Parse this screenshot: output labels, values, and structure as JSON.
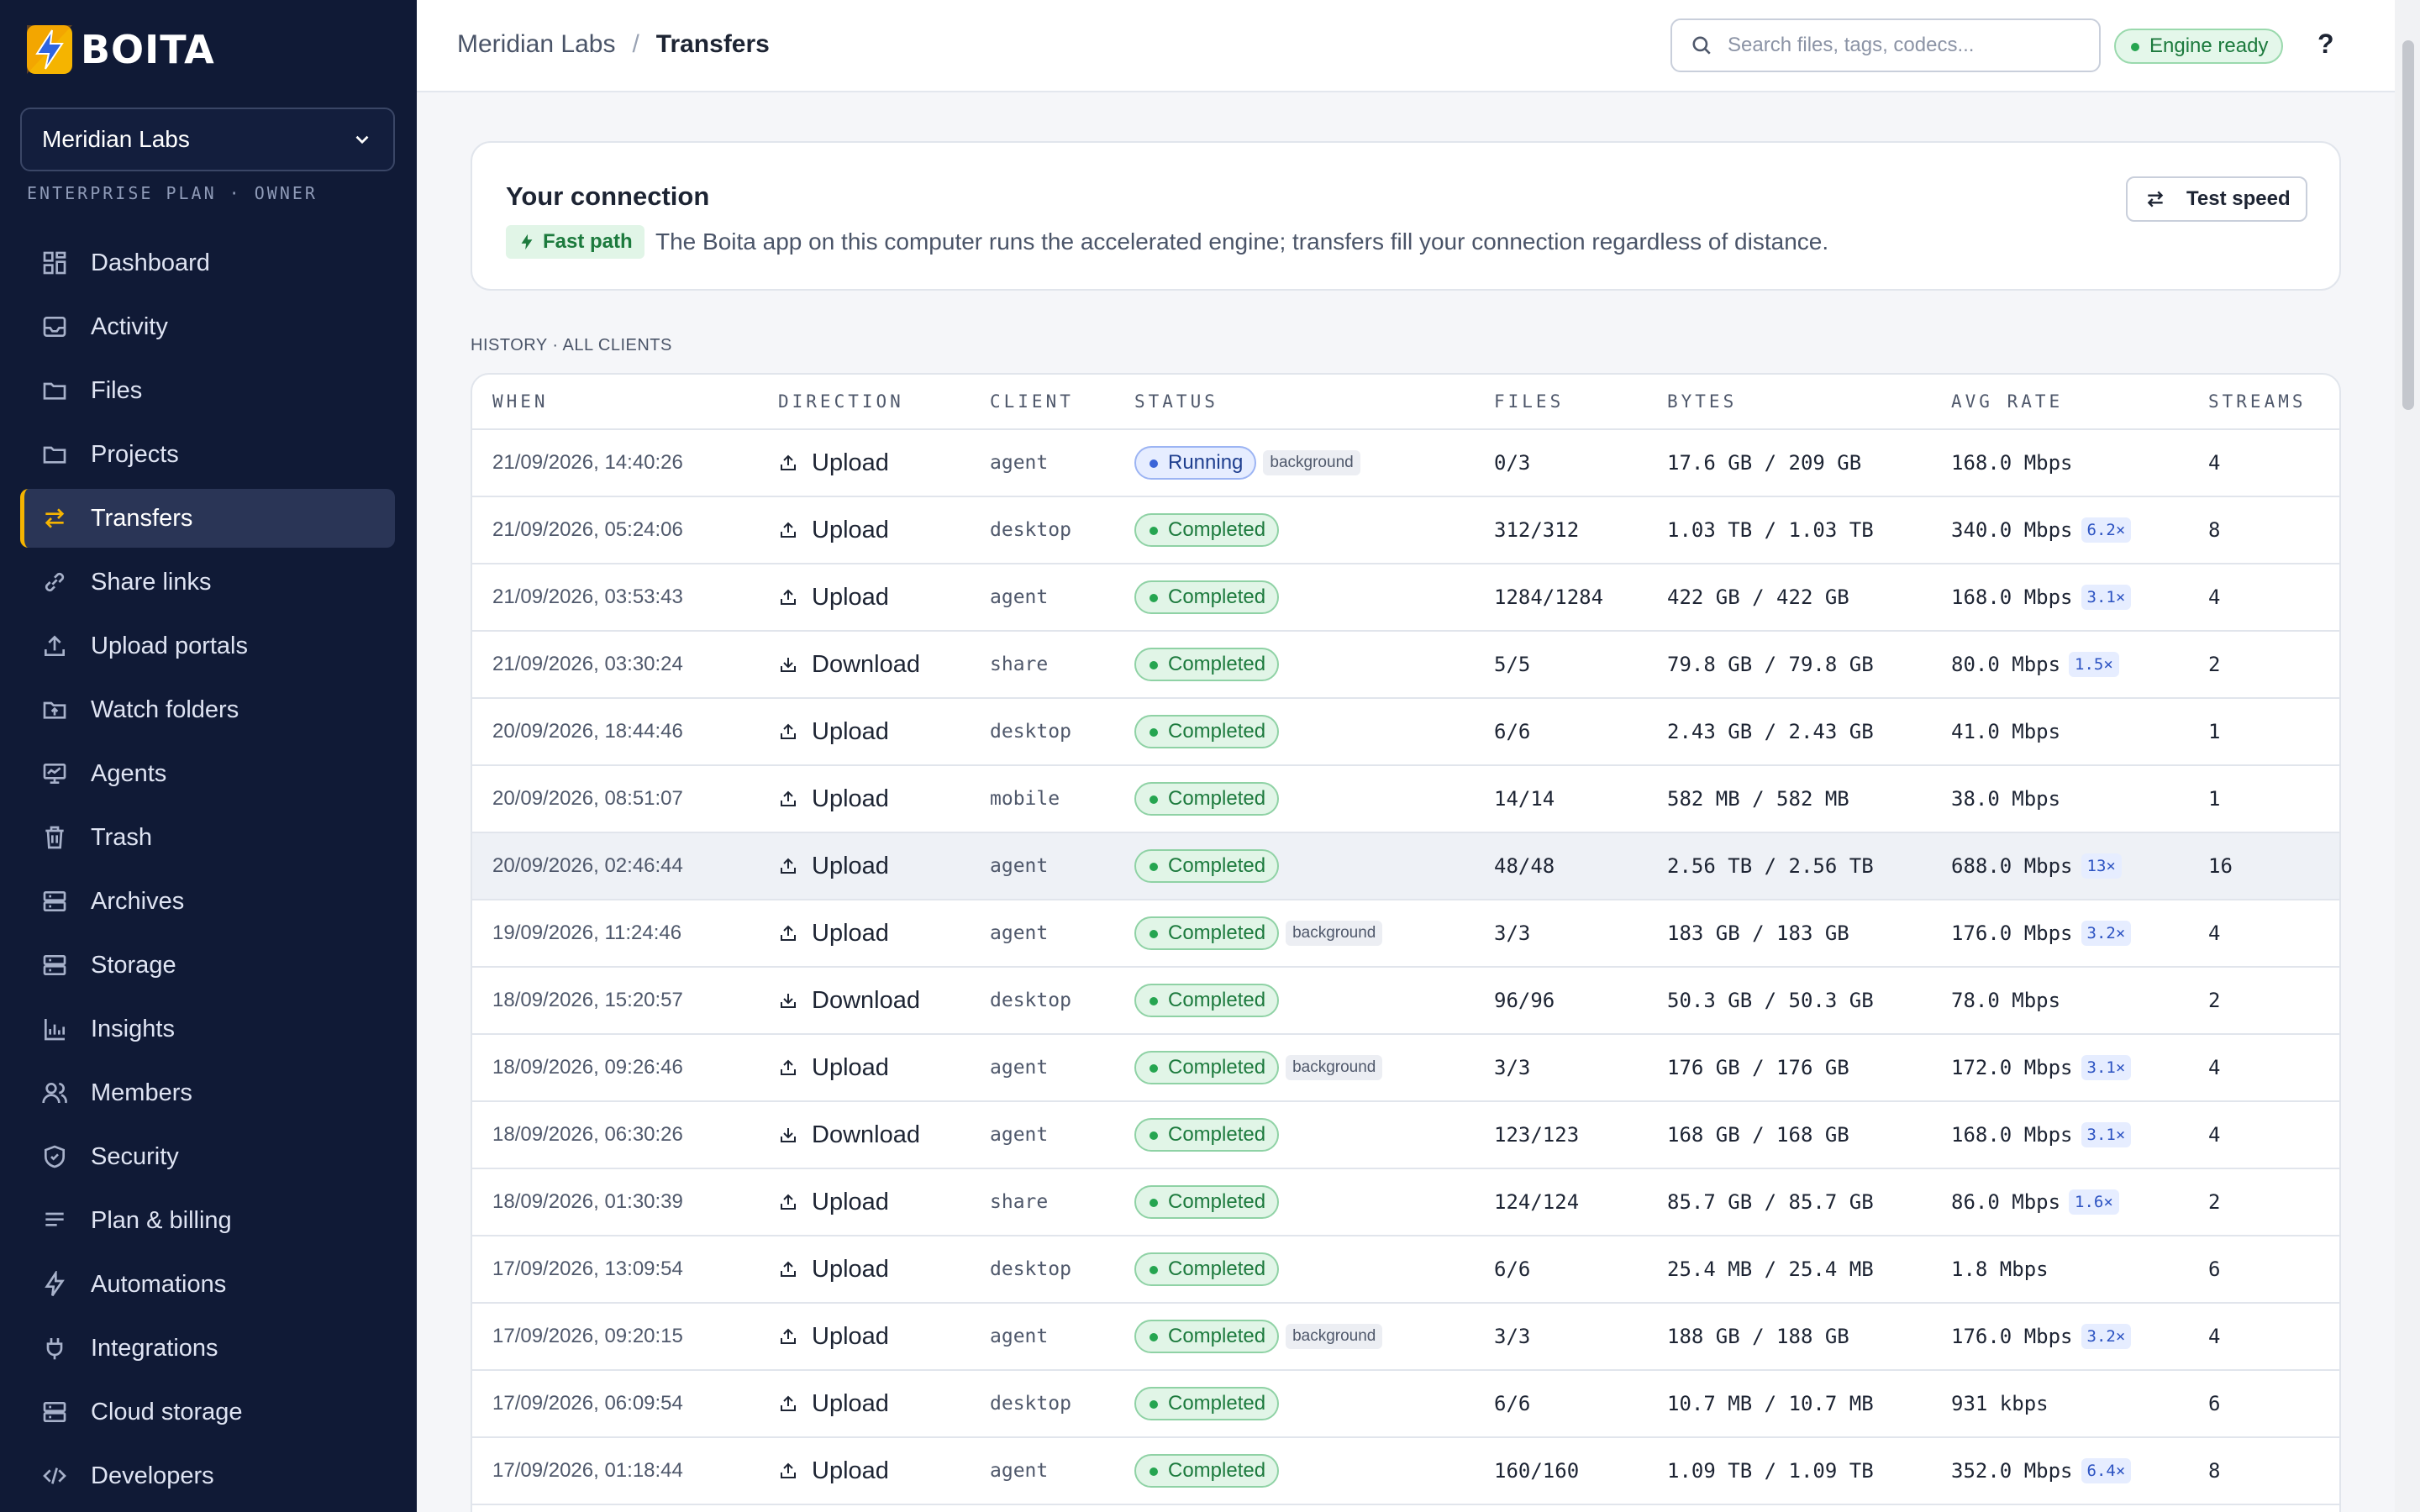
{
  "brand": {
    "name": "BOITA"
  },
  "org": {
    "name": "Meridian Labs",
    "plan": "ENTERPRISE PLAN · OWNER"
  },
  "nav": [
    {
      "label": "Dashboard",
      "icon": "grid-icon"
    },
    {
      "label": "Activity",
      "icon": "inbox-icon"
    },
    {
      "label": "Files",
      "icon": "folder-icon"
    },
    {
      "label": "Projects",
      "icon": "folder-icon"
    },
    {
      "label": "Transfers",
      "icon": "arrows-swap-icon",
      "active": true
    },
    {
      "label": "Share links",
      "icon": "link-icon"
    },
    {
      "label": "Upload portals",
      "icon": "upload-icon"
    },
    {
      "label": "Watch folders",
      "icon": "folder-watch-icon"
    },
    {
      "label": "Agents",
      "icon": "monitor-icon"
    },
    {
      "label": "Trash",
      "icon": "trash-icon"
    },
    {
      "label": "Archives",
      "icon": "archive-icon"
    },
    {
      "label": "Storage",
      "icon": "server-icon"
    },
    {
      "label": "Insights",
      "icon": "bar-chart-icon"
    },
    {
      "label": "Members",
      "icon": "users-icon"
    },
    {
      "label": "Security",
      "icon": "shield-icon"
    },
    {
      "label": "Plan & billing",
      "icon": "list-icon"
    },
    {
      "label": "Automations",
      "icon": "bolt-icon"
    },
    {
      "label": "Integrations",
      "icon": "plug-icon"
    },
    {
      "label": "Cloud storage",
      "icon": "cloud-server-icon"
    },
    {
      "label": "Developers",
      "icon": "code-icon"
    }
  ],
  "header": {
    "breadcrumb": [
      "Meridian Labs",
      "Transfers"
    ],
    "search_placeholder": "Search files, tags, codecs...",
    "engine_status": "Engine ready",
    "help": "?"
  },
  "connection": {
    "title": "Your connection",
    "badge": "Fast path",
    "description": "The Boita app on this computer runs the accelerated engine; transfers fill your connection regardless of distance.",
    "test_button": "Test speed"
  },
  "history": {
    "label": "HISTORY · ALL CLIENTS",
    "columns": [
      "WHEN",
      "DIRECTION",
      "CLIENT",
      "STATUS",
      "FILES",
      "BYTES",
      "AVG RATE",
      "STREAMS"
    ],
    "rows": [
      {
        "when": "21/09/2026, 14:40:26",
        "direction": "Upload",
        "client": "agent",
        "status": "Running",
        "tag": "background",
        "files": "0/3",
        "bytes": "17.6 GB / 209 GB",
        "rate": "168.0 Mbps",
        "mult": "",
        "streams": "4"
      },
      {
        "when": "21/09/2026, 05:24:06",
        "direction": "Upload",
        "client": "desktop",
        "status": "Completed",
        "tag": "",
        "files": "312/312",
        "bytes": "1.03 TB / 1.03 TB",
        "rate": "340.0 Mbps",
        "mult": "6.2×",
        "streams": "8"
      },
      {
        "when": "21/09/2026, 03:53:43",
        "direction": "Upload",
        "client": "agent",
        "status": "Completed",
        "tag": "",
        "files": "1284/1284",
        "bytes": "422 GB / 422 GB",
        "rate": "168.0 Mbps",
        "mult": "3.1×",
        "streams": "4"
      },
      {
        "when": "21/09/2026, 03:30:24",
        "direction": "Download",
        "client": "share",
        "status": "Completed",
        "tag": "",
        "files": "5/5",
        "bytes": "79.8 GB / 79.8 GB",
        "rate": "80.0 Mbps",
        "mult": "1.5×",
        "streams": "2"
      },
      {
        "when": "20/09/2026, 18:44:46",
        "direction": "Upload",
        "client": "desktop",
        "status": "Completed",
        "tag": "",
        "files": "6/6",
        "bytes": "2.43 GB / 2.43 GB",
        "rate": "41.0 Mbps",
        "mult": "",
        "streams": "1"
      },
      {
        "when": "20/09/2026, 08:51:07",
        "direction": "Upload",
        "client": "mobile",
        "status": "Completed",
        "tag": "",
        "files": "14/14",
        "bytes": "582 MB / 582 MB",
        "rate": "38.0 Mbps",
        "mult": "",
        "streams": "1"
      },
      {
        "when": "20/09/2026, 02:46:44",
        "direction": "Upload",
        "client": "agent",
        "status": "Completed",
        "tag": "",
        "files": "48/48",
        "bytes": "2.56 TB / 2.56 TB",
        "rate": "688.0 Mbps",
        "mult": "13×",
        "streams": "16",
        "highlight": true
      },
      {
        "when": "19/09/2026, 11:24:46",
        "direction": "Upload",
        "client": "agent",
        "status": "Completed",
        "tag": "background",
        "files": "3/3",
        "bytes": "183 GB / 183 GB",
        "rate": "176.0 Mbps",
        "mult": "3.2×",
        "streams": "4"
      },
      {
        "when": "18/09/2026, 15:20:57",
        "direction": "Download",
        "client": "desktop",
        "status": "Completed",
        "tag": "",
        "files": "96/96",
        "bytes": "50.3 GB / 50.3 GB",
        "rate": "78.0 Mbps",
        "mult": "",
        "streams": "2"
      },
      {
        "when": "18/09/2026, 09:26:46",
        "direction": "Upload",
        "client": "agent",
        "status": "Completed",
        "tag": "background",
        "files": "3/3",
        "bytes": "176 GB / 176 GB",
        "rate": "172.0 Mbps",
        "mult": "3.1×",
        "streams": "4"
      },
      {
        "when": "18/09/2026, 06:30:26",
        "direction": "Download",
        "client": "agent",
        "status": "Completed",
        "tag": "",
        "files": "123/123",
        "bytes": "168 GB / 168 GB",
        "rate": "168.0 Mbps",
        "mult": "3.1×",
        "streams": "4"
      },
      {
        "when": "18/09/2026, 01:30:39",
        "direction": "Upload",
        "client": "share",
        "status": "Completed",
        "tag": "",
        "files": "124/124",
        "bytes": "85.7 GB / 85.7 GB",
        "rate": "86.0 Mbps",
        "mult": "1.6×",
        "streams": "2"
      },
      {
        "when": "17/09/2026, 13:09:54",
        "direction": "Upload",
        "client": "desktop",
        "status": "Completed",
        "tag": "",
        "files": "6/6",
        "bytes": "25.4 MB / 25.4 MB",
        "rate": "1.8 Mbps",
        "mult": "",
        "streams": "6"
      },
      {
        "when": "17/09/2026, 09:20:15",
        "direction": "Upload",
        "client": "agent",
        "status": "Completed",
        "tag": "background",
        "files": "3/3",
        "bytes": "188 GB / 188 GB",
        "rate": "176.0 Mbps",
        "mult": "3.2×",
        "streams": "4"
      },
      {
        "when": "17/09/2026, 06:09:54",
        "direction": "Upload",
        "client": "desktop",
        "status": "Completed",
        "tag": "",
        "files": "6/6",
        "bytes": "10.7 MB / 10.7 MB",
        "rate": "931 kbps",
        "mult": "",
        "streams": "6"
      },
      {
        "when": "17/09/2026, 01:18:44",
        "direction": "Upload",
        "client": "agent",
        "status": "Completed",
        "tag": "",
        "files": "160/160",
        "bytes": "1.09 TB / 1.09 TB",
        "rate": "352.0 Mbps",
        "mult": "6.4×",
        "streams": "8"
      }
    ]
  },
  "colors": {
    "sidebar_bg": "#101a36",
    "accent": "#f5b400",
    "success": "#25a550",
    "running": "#3a64d8"
  }
}
